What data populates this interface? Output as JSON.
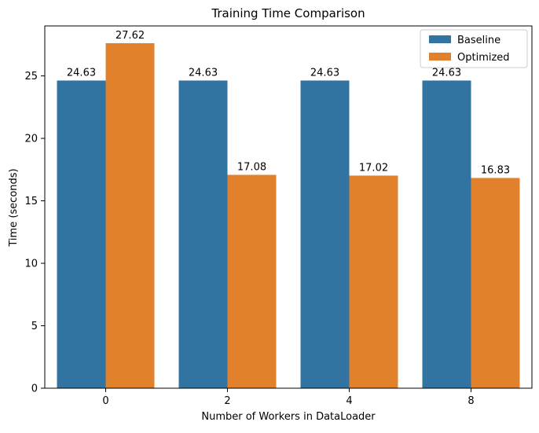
{
  "chart_data": {
    "type": "bar",
    "title": "Training Time Comparison",
    "xlabel": "Number of Workers in DataLoader",
    "ylabel": "Time (seconds)",
    "categories": [
      "0",
      "2",
      "4",
      "8"
    ],
    "series": [
      {
        "name": "Baseline",
        "values": [
          24.63,
          24.63,
          24.63,
          24.63
        ],
        "color": "#3274a1"
      },
      {
        "name": "Optimized",
        "values": [
          27.62,
          17.08,
          17.02,
          16.83
        ],
        "color": "#e1812c"
      }
    ],
    "value_labels": [
      [
        "24.63",
        "24.63",
        "24.63",
        "24.63"
      ],
      [
        "27.62",
        "17.08",
        "17.02",
        "16.83"
      ]
    ],
    "ylim": [
      0,
      29.0
    ],
    "yticks": [
      0,
      5,
      10,
      15,
      20,
      25
    ],
    "grid": false,
    "legend_position": "top-right"
  }
}
